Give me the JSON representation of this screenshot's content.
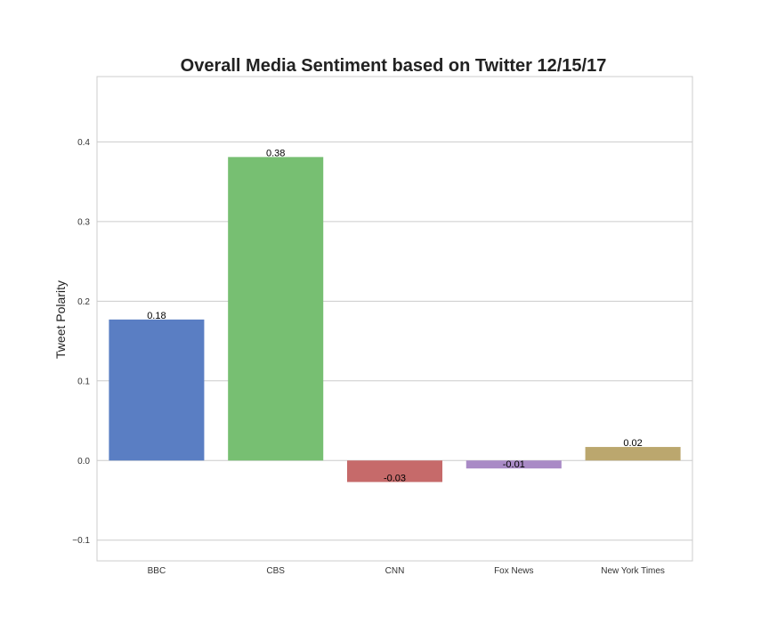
{
  "chart_data": {
    "type": "bar",
    "title": "Overall Media Sentiment based on Twitter 12/15/17",
    "xlabel": "",
    "ylabel": "Tweet Polarity",
    "categories": [
      "BBC",
      "CBS",
      "CNN",
      "Fox News",
      "New York Times"
    ],
    "values": [
      0.177,
      0.381,
      -0.027,
      -0.01,
      0.017
    ],
    "data_labels": [
      "0.18",
      "0.38",
      "-0.03",
      "-0.01",
      "0.02"
    ],
    "colors": [
      "#5a7ec3",
      "#77bf72",
      "#c66a6a",
      "#a98ac6",
      "#bba76e"
    ],
    "ylim": [
      -0.126,
      0.482
    ],
    "yticks": [
      -0.1,
      0.0,
      0.1,
      0.2,
      0.3,
      0.4
    ],
    "ytick_labels": [
      "−0.1",
      "0.0",
      "0.1",
      "0.2",
      "0.3",
      "0.4"
    ],
    "grid": true,
    "legend": "none"
  }
}
